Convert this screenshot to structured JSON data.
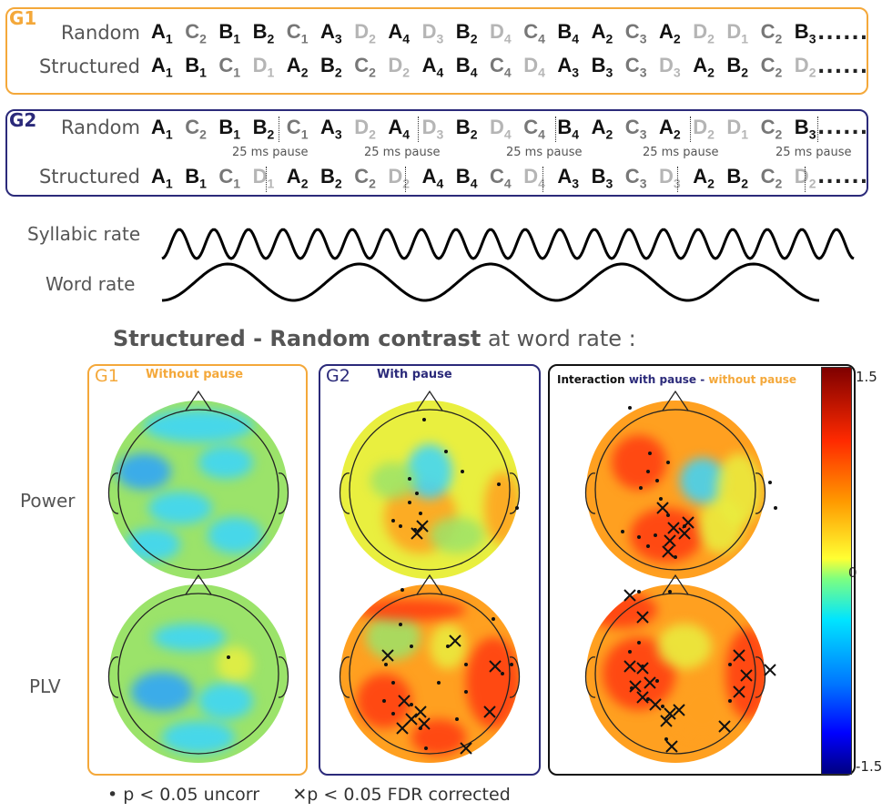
{
  "groups": {
    "g1": {
      "label": "G1",
      "random_label": "Random",
      "structured_label": "Structured",
      "random": [
        [
          "A",
          "1",
          "dark"
        ],
        [
          "C",
          "2",
          "mid"
        ],
        [
          "B",
          "1",
          "dark"
        ],
        [
          "B",
          "2",
          "dark"
        ],
        [
          "C",
          "1",
          "mid"
        ],
        [
          "A",
          "3",
          "dark"
        ],
        [
          "D",
          "2",
          "light"
        ],
        [
          "A",
          "4",
          "dark"
        ],
        [
          "D",
          "3",
          "light"
        ],
        [
          "B",
          "2",
          "dark"
        ],
        [
          "D",
          "4",
          "light"
        ],
        [
          "C",
          "4",
          "mid"
        ],
        [
          "B",
          "4",
          "dark"
        ],
        [
          "A",
          "2",
          "dark"
        ],
        [
          "C",
          "3",
          "mid"
        ],
        [
          "A",
          "2",
          "dark"
        ],
        [
          "D",
          "2",
          "light"
        ],
        [
          "D",
          "1",
          "light"
        ],
        [
          "C",
          "2",
          "mid"
        ],
        [
          "B",
          "3",
          "dark"
        ]
      ],
      "structured": [
        [
          "A",
          "1",
          "dark"
        ],
        [
          "B",
          "1",
          "dark"
        ],
        [
          "C",
          "1",
          "mid"
        ],
        [
          "D",
          "1",
          "light"
        ],
        [
          "A",
          "2",
          "dark"
        ],
        [
          "B",
          "2",
          "dark"
        ],
        [
          "C",
          "2",
          "mid"
        ],
        [
          "D",
          "2",
          "light"
        ],
        [
          "A",
          "4",
          "dark"
        ],
        [
          "B",
          "4",
          "dark"
        ],
        [
          "C",
          "4",
          "mid"
        ],
        [
          "D",
          "4",
          "light"
        ],
        [
          "A",
          "3",
          "dark"
        ],
        [
          "B",
          "3",
          "dark"
        ],
        [
          "C",
          "3",
          "mid"
        ],
        [
          "D",
          "3",
          "light"
        ],
        [
          "A",
          "2",
          "dark"
        ],
        [
          "B",
          "2",
          "dark"
        ],
        [
          "C",
          "2",
          "mid"
        ],
        [
          "D",
          "2",
          "light"
        ]
      ],
      "ellipsis": "......"
    },
    "g2": {
      "label": "G2",
      "random_label": "Random",
      "structured_label": "Structured",
      "pause_text": "25 ms pause",
      "ellipsis": "......"
    }
  },
  "waves": {
    "syllabic_label": "Syllabic rate",
    "word_label": "Word rate"
  },
  "contrast_title": {
    "bold": "Structured - Random contrast",
    "rest": "at word rate :"
  },
  "panels": {
    "p1": {
      "group": "G1",
      "title": "Without pause"
    },
    "p2": {
      "group": "G2",
      "title": "With pause"
    },
    "p3": {
      "title_a": "Interaction",
      "title_b": "with pause -",
      "title_c": "without pause"
    }
  },
  "rows": {
    "power": "Power",
    "plv": "PLV"
  },
  "colorbar": {
    "max": "1.5",
    "mid": "0",
    "min": "-1.5"
  },
  "legend": {
    "dot": "• p < 0.05 uncorr",
    "cross": "✕p < 0.05 FDR corrected"
  },
  "colors": {
    "g1": "#f4a83a",
    "g2": "#2b2a7a",
    "dark": "#111111",
    "mid": "#777777",
    "light": "#b5b5b5"
  }
}
